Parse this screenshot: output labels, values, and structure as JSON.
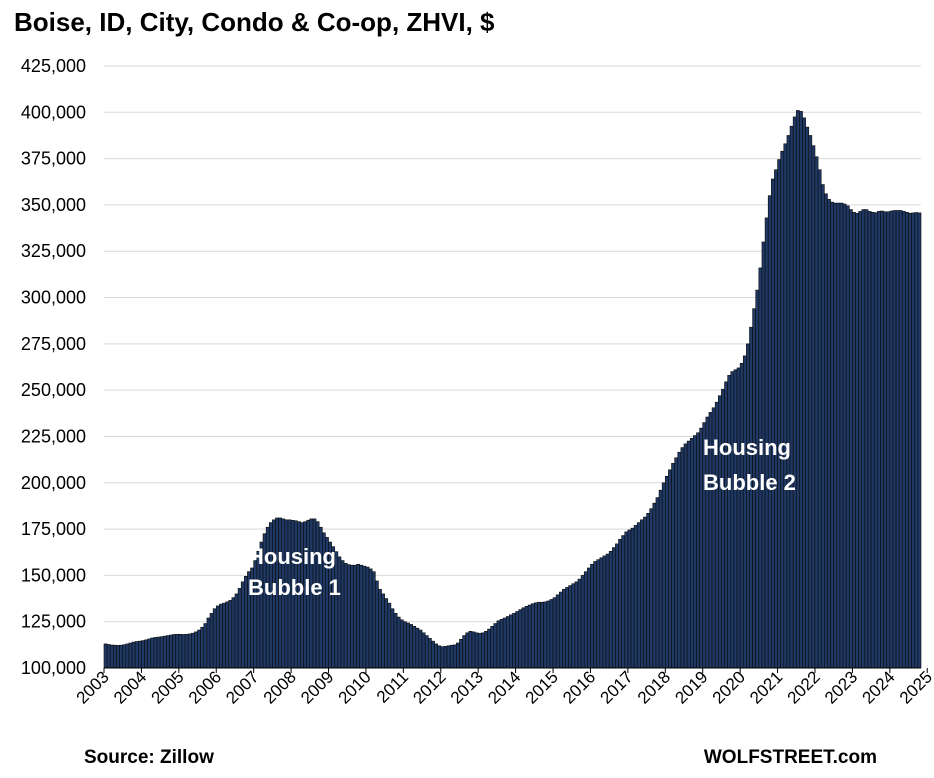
{
  "chart_data": {
    "type": "bar",
    "title": "Boise, ID, City, Condo & Co-op, ZHVI, $",
    "xlabel": "",
    "ylabel": "",
    "ylim": [
      100000,
      425000
    ],
    "y_ticks": [
      "100,000",
      "125,000",
      "150,000",
      "175,000",
      "200,000",
      "225,000",
      "250,000",
      "275,000",
      "300,000",
      "325,000",
      "350,000",
      "375,000",
      "400,000",
      "425,000"
    ],
    "x_ticks": [
      "2003",
      "2004",
      "2005",
      "2006",
      "2007",
      "2008",
      "2009",
      "2010",
      "2011",
      "2012",
      "2013",
      "2014",
      "2015",
      "2016",
      "2017",
      "2018",
      "2019",
      "2020",
      "2021",
      "2022",
      "2023",
      "2024",
      "2025"
    ],
    "grid": true,
    "bar_color": "#1f3864",
    "frequency": "monthly",
    "x_start": "2003-01",
    "series": [
      {
        "values": [
          113000,
          112700,
          112400,
          112300,
          112200,
          112300,
          112600,
          113000,
          113500,
          114000,
          114300,
          114500,
          114800,
          115200,
          115700,
          116200,
          116500,
          116700,
          116900,
          117200,
          117500,
          117800,
          118100,
          118200,
          118200,
          118100,
          118200,
          118400,
          118800,
          119500,
          120500,
          122000,
          124000,
          127000,
          129500,
          132000,
          133500,
          134500,
          135000,
          135700,
          136500,
          138000,
          140000,
          143000,
          146500,
          149500,
          152000,
          154000,
          158000,
          163000,
          168000,
          172500,
          176000,
          178500,
          180000,
          181000,
          181000,
          180500,
          180000,
          180000,
          179700,
          179500,
          179000,
          178500,
          179000,
          179800,
          180500,
          180500,
          179000,
          176000,
          173000,
          170500,
          168000,
          165500,
          162800,
          160000,
          158000,
          156500,
          155800,
          155500,
          155500,
          156000,
          155500,
          155000,
          154500,
          153500,
          152000,
          147000,
          142500,
          140000,
          137500,
          135000,
          132000,
          129500,
          127500,
          126000,
          125000,
          124300,
          123500,
          122500,
          121500,
          120500,
          119000,
          117500,
          116000,
          114500,
          113000,
          112000,
          111500,
          111700,
          112000,
          112300,
          112500,
          113500,
          115500,
          117500,
          119000,
          119800,
          119500,
          119000,
          118700,
          119000,
          119800,
          121000,
          122500,
          124000,
          125500,
          126300,
          127000,
          127800,
          128700,
          129500,
          130500,
          131500,
          132500,
          133300,
          134000,
          134700,
          135200,
          135500,
          135500,
          135700,
          136200,
          137000,
          138000,
          139500,
          141000,
          142500,
          143500,
          144500,
          145500,
          146500,
          148000,
          150000,
          152000,
          154000,
          156000,
          157500,
          158500,
          159500,
          160500,
          161500,
          163000,
          165000,
          167000,
          169500,
          171500,
          173500,
          174500,
          175500,
          177000,
          178500,
          180000,
          181500,
          183500,
          186000,
          189000,
          192000,
          196000,
          200000,
          203500,
          207000,
          210500,
          213500,
          216500,
          219000,
          221000,
          222500,
          224000,
          225500,
          227000,
          229500,
          232500,
          235500,
          238000,
          240500,
          243500,
          247000,
          250500,
          254500,
          258000,
          260000,
          261000,
          262000,
          264500,
          268500,
          275000,
          284000,
          294000,
          304000,
          316000,
          330000,
          343000,
          355000,
          364000,
          369000,
          374500,
          379000,
          383000,
          387500,
          392500,
          397500,
          401000,
          400500,
          397000,
          392000,
          387500,
          382000,
          376000,
          369000,
          361000,
          356000,
          353000,
          351500,
          351000,
          351000,
          351000,
          350500,
          349500,
          347500,
          346000,
          345500,
          346500,
          347500,
          347500,
          346500,
          346000,
          345800,
          346500,
          346700,
          346300,
          346300,
          346700,
          347000,
          347000,
          347000,
          346500,
          346000,
          345500,
          345700,
          345900,
          345700
        ]
      }
    ],
    "annotations": [
      {
        "text_line1": "Housing",
        "text_line2": "Bubble 1"
      },
      {
        "text_line1": "Housing",
        "text_line2": "Bubble 2"
      }
    ]
  },
  "footer": {
    "source": "Source: Zillow",
    "brand": "WOLFSTREET.com"
  }
}
